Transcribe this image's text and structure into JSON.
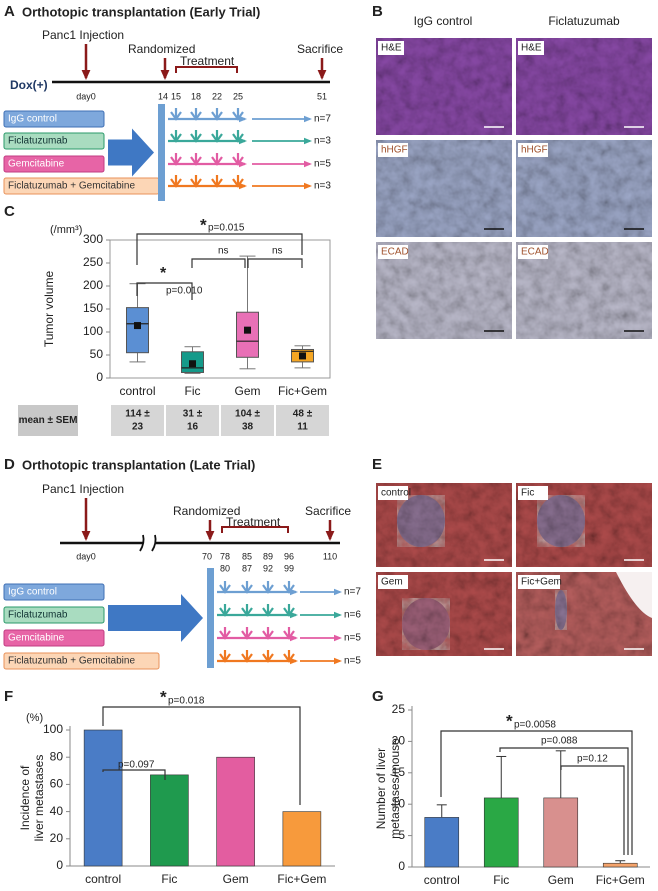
{
  "panels": {
    "a": {
      "label": "A",
      "title": "Orthotopic transplantation (Early Trial)",
      "events": [
        "Panc1 Injection",
        "Randomized",
        "Treatment",
        "Sacrifice"
      ],
      "dox": "Dox(+)",
      "days": [
        "day0",
        "14",
        "15",
        "18",
        "22",
        "25",
        "51"
      ],
      "groups": [
        "IgG control",
        "Ficlatuzumab",
        "Gemcitabine",
        "Ficlatuzumab + Gemcitabine"
      ],
      "n": [
        "n=7",
        "n=3",
        "n=5",
        "n=3"
      ]
    },
    "b": {
      "label": "B",
      "columns": [
        "IgG control",
        "Ficlatuzumab"
      ],
      "stains": [
        "H&E",
        "hHGF",
        "ECAD"
      ]
    },
    "d": {
      "label": "D",
      "title": "Orthotopic transplantation (Late Trial)",
      "events": [
        "Panc1 Injection",
        "Randomized",
        "Treatment",
        "Sacrifice"
      ],
      "days": [
        "day0",
        "70",
        "78",
        "80",
        "85",
        "87",
        "89",
        "92",
        "96",
        "99",
        "110"
      ],
      "groups": [
        "IgG control",
        "Ficlatuzumab",
        "Gemcitabine",
        "Ficlatuzumab + Gemcitabine"
      ],
      "n": [
        "n=7",
        "n=6",
        "n=5",
        "n=5"
      ]
    },
    "e": {
      "label": "E",
      "images": [
        "control",
        "Fic",
        "Gem",
        "Fic+Gem"
      ]
    }
  },
  "chart_data": [
    {
      "panel": "C",
      "type": "box",
      "unit": "(/mm³)",
      "y_label": "Tumor volume",
      "categories": [
        "control",
        "Fic",
        "Gem",
        "Fic+Gem"
      ],
      "colors": [
        "#5b8fd3",
        "#159a8a",
        "#e870b6",
        "#f5a623"
      ],
      "boxes": [
        {
          "min": 35,
          "q1": 55,
          "median": 118,
          "q3": 153,
          "max": 205,
          "mean": 114
        },
        {
          "min": 10,
          "q1": 12,
          "median": 22,
          "q3": 57,
          "max": 68,
          "mean": 31
        },
        {
          "min": 20,
          "q1": 45,
          "median": 80,
          "q3": 143,
          "max": 265,
          "mean": 104
        },
        {
          "min": 22,
          "q1": 35,
          "median": 58,
          "q3": 62,
          "max": 70,
          "mean": 48
        }
      ],
      "ylim": [
        0,
        300
      ],
      "yticks": [
        0,
        50,
        100,
        150,
        200,
        250,
        300
      ],
      "annotations": [
        "*",
        "p=0.010",
        "ns",
        "ns",
        "*",
        "p=0.015"
      ],
      "table": {
        "header": "mean ±  SEM",
        "cells": [
          [
            "114 ±",
            "23"
          ],
          [
            "31 ±",
            "16"
          ],
          [
            "104 ±",
            "38"
          ],
          [
            "48 ±",
            "11"
          ]
        ]
      }
    },
    {
      "panel": "F",
      "type": "bar",
      "unit": "(%)",
      "y_label": [
        "Incidence of",
        "liver metastases"
      ],
      "categories": [
        "control",
        "Fic",
        "Gem",
        "Fic+Gem"
      ],
      "values": [
        100,
        67,
        80,
        40
      ],
      "colors": [
        "#4a7cc6",
        "#1f9a4e",
        "#e35da0",
        "#f79a3c"
      ],
      "ylim": [
        0,
        100
      ],
      "yticks": [
        0,
        20,
        40,
        60,
        80,
        100
      ],
      "annotations": [
        "p=0.097",
        "*",
        "p=0.018"
      ]
    },
    {
      "panel": "G",
      "type": "bar",
      "y_label": [
        "Number of liver",
        "metastases/mouse"
      ],
      "categories": [
        "control",
        "Fic",
        "Gem",
        "Fic+Gem"
      ],
      "values": [
        7.9,
        11,
        11,
        0.6
      ],
      "errors": [
        2,
        6.6,
        7.5,
        0.4
      ],
      "colors": [
        "#4a7cc6",
        "#2aa845",
        "#d8908e",
        "#f4a36b"
      ],
      "ylim": [
        0,
        25
      ],
      "yticks": [
        0,
        5,
        10,
        15,
        20,
        25
      ],
      "annotations": [
        "*",
        "p=0.0058",
        "p=0.088",
        "p=0.12"
      ]
    }
  ]
}
